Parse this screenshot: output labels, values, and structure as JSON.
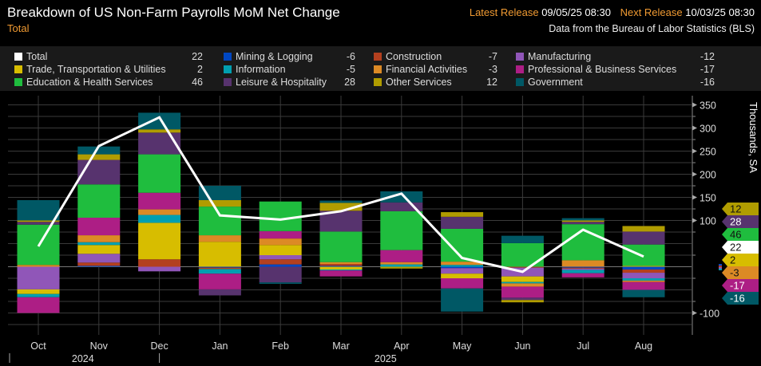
{
  "header": {
    "title": "Breakdown of US Non-Farm Payrolls MoM Net Change",
    "subtitle": "Total",
    "latest_label": "Latest Release",
    "latest_value": "09/05/25 08:30",
    "next_label": "Next Release",
    "next_value": "10/03/25 08:30",
    "source": "Data from the Bureau of Labor Statistics (BLS)"
  },
  "chart_data": {
    "type": "bar",
    "stacked": true,
    "title": "Breakdown of US Non-Farm Payrolls MoM Net Change",
    "ylabel": "Thousands, SA",
    "ylim": [
      -100,
      350
    ],
    "yticks": [
      350,
      300,
      250,
      200,
      150,
      100,
      -100
    ],
    "categories": [
      "Oct",
      "Nov",
      "Dec",
      "Jan",
      "Feb",
      "Mar",
      "Apr",
      "May",
      "Jun",
      "Jul",
      "Aug"
    ],
    "year_labels": [
      {
        "label": "2024",
        "month": "Nov"
      },
      {
        "label": "2025",
        "month": "Apr"
      }
    ],
    "total": {
      "name": "Total",
      "color": "#ffffff",
      "latest": 22,
      "values": [
        44,
        261,
        323,
        111,
        102,
        120,
        158,
        19,
        -11,
        80,
        22
      ]
    },
    "series": [
      {
        "key": "mining",
        "name": "Mining & Logging",
        "color": "#0047c2",
        "latest": -6,
        "values": [
          0,
          2,
          0,
          -2,
          5,
          2,
          0,
          -3,
          0,
          -2,
          -6
        ]
      },
      {
        "key": "construction",
        "name": "Construction",
        "color": "#b3401f",
        "latest": -7,
        "values": [
          0,
          7,
          16,
          -3,
          11,
          4,
          0,
          0,
          -2,
          -2,
          -7
        ]
      },
      {
        "key": "manufacturing",
        "name": "Manufacturing",
        "color": "#9056b8",
        "latest": -12,
        "values": [
          -49,
          19,
          -10,
          0,
          9,
          0,
          0,
          -12,
          -19,
          -3,
          -12
        ]
      },
      {
        "key": "trade",
        "name": "Trade, Transportation & Utilities",
        "color": "#d7bd00",
        "latest": 2,
        "values": [
          -10,
          19,
          79,
          54,
          22,
          -6,
          0,
          -10,
          -12,
          0,
          2
        ]
      },
      {
        "key": "information",
        "name": "Information",
        "color": "#009fb0",
        "latest": -5,
        "values": [
          -7,
          6,
          17,
          -10,
          0,
          -2,
          5,
          4,
          -3,
          -7,
          -5
        ]
      },
      {
        "key": "financial",
        "name": "Financial Activities",
        "color": "#dc8a25",
        "latest": -3,
        "values": [
          4,
          15,
          12,
          14,
          14,
          4,
          5,
          7,
          -7,
          14,
          -3
        ]
      },
      {
        "key": "professional",
        "name": "Professional & Business Services",
        "color": "#ad1e85",
        "latest": -17,
        "values": [
          -34,
          38,
          36,
          -34,
          16,
          -13,
          26,
          -22,
          -24,
          -9,
          -17
        ]
      },
      {
        "key": "education",
        "name": "Education & Health Services",
        "color": "#1fbd3e",
        "latest": 46,
        "values": [
          87,
          72,
          83,
          62,
          64,
          66,
          84,
          71,
          51,
          78,
          46
        ]
      },
      {
        "key": "leisure",
        "name": "Leisure & Hospitality",
        "color": "#57336e",
        "latest": 28,
        "values": [
          6,
          53,
          47,
          -13,
          -34,
          45,
          19,
          26,
          -5,
          5,
          28
        ]
      },
      {
        "key": "other",
        "name": "Other Services",
        "color": "#b09c00",
        "latest": 12,
        "values": [
          3,
          12,
          7,
          14,
          0,
          17,
          -4,
          10,
          -5,
          3,
          12
        ]
      },
      {
        "key": "government",
        "name": "Government",
        "color": "#005865",
        "latest": -16,
        "values": [
          44,
          17,
          36,
          31,
          -3,
          5,
          24,
          -50,
          16,
          5,
          -16
        ]
      }
    ]
  }
}
